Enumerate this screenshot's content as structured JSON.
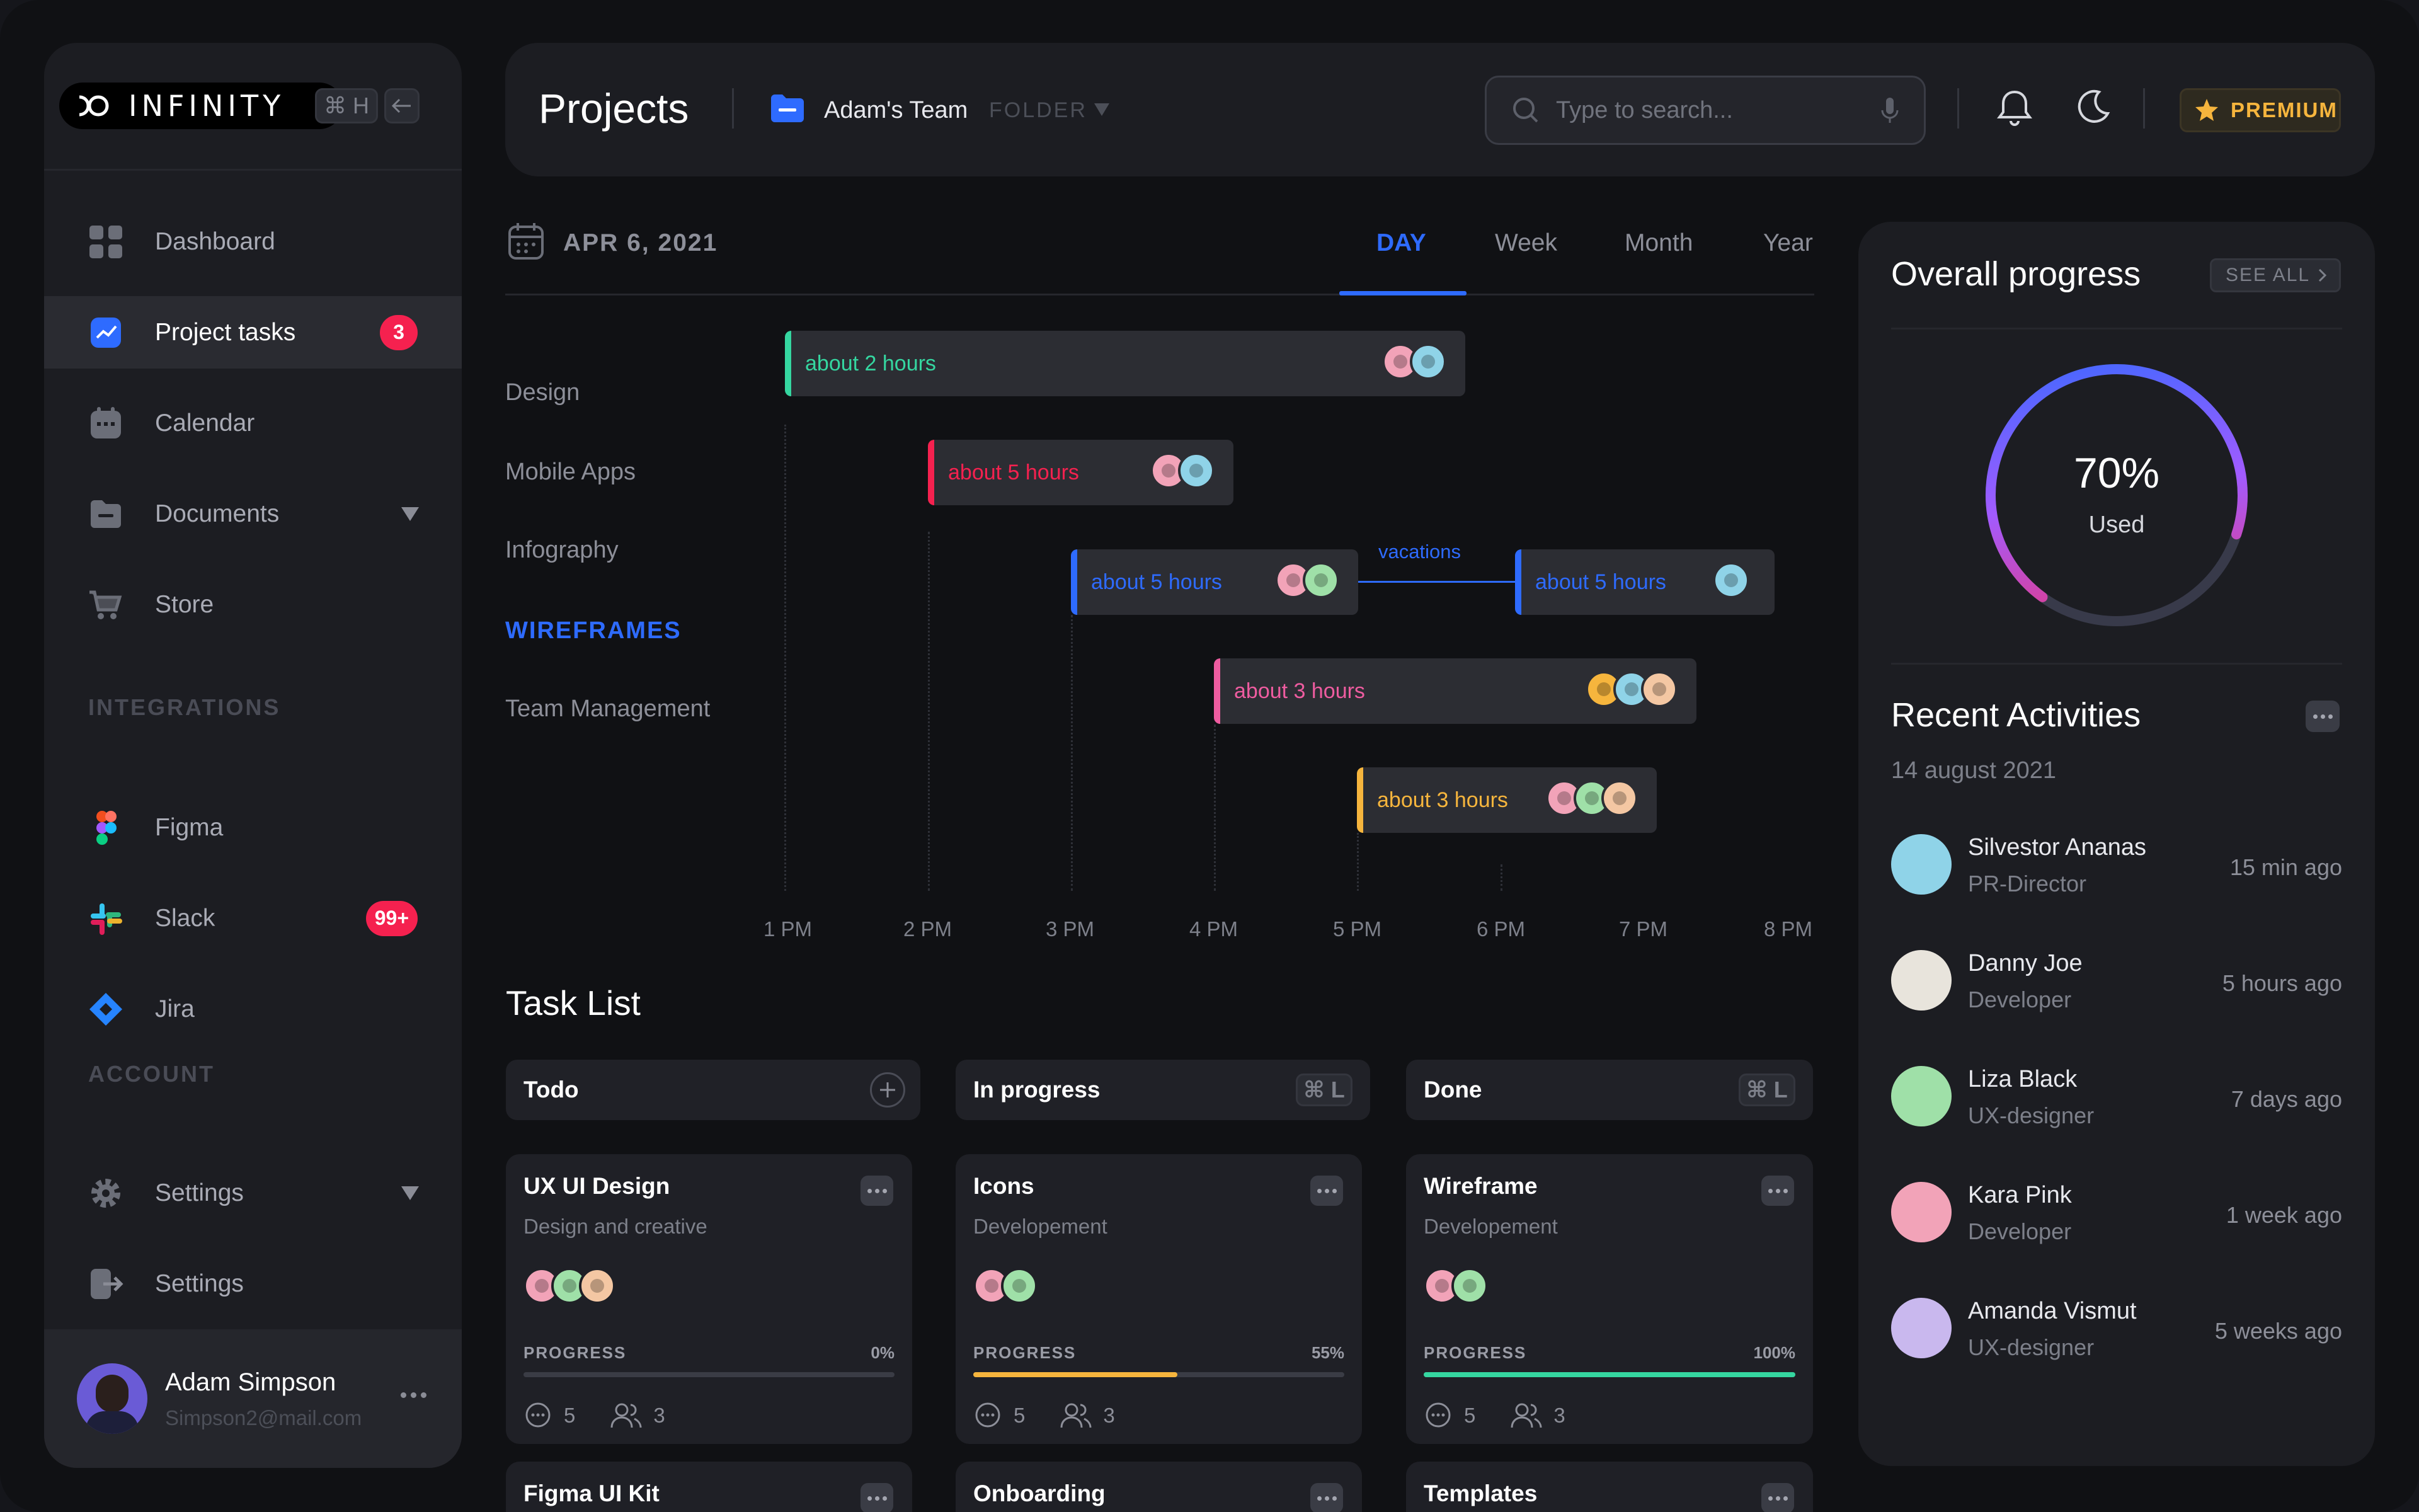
{
  "app": {
    "logo_text": "INFINITY",
    "shortcut_search": "⌘ H",
    "collapse_icon": "arrow-left-icon"
  },
  "sidebar": {
    "items": [
      {
        "label": "Dashboard",
        "icon": "grid-icon"
      },
      {
        "label": "Project tasks",
        "icon": "chart-icon",
        "badge": "3",
        "active": true
      },
      {
        "label": "Calendar",
        "icon": "calendar-icon"
      },
      {
        "label": "Documents",
        "icon": "folder-icon",
        "expandable": true
      },
      {
        "label": "Store",
        "icon": "cart-icon"
      }
    ],
    "integrations_label": "INTEGRATIONS",
    "integrations": [
      {
        "label": "Figma",
        "icon": "figma-icon"
      },
      {
        "label": "Slack",
        "icon": "slack-icon",
        "badge": "99+"
      },
      {
        "label": "Jira",
        "icon": "jira-icon"
      }
    ],
    "account_label": "ACCOUNT",
    "account": [
      {
        "label": "Settings",
        "icon": "gear-icon",
        "expandable": true
      },
      {
        "label": "Settings",
        "icon": "logout-icon"
      }
    ],
    "user": {
      "name": "Adam Simpson",
      "email": "Simpson2@mail.com"
    }
  },
  "header": {
    "title": "Projects",
    "team": "Adam's Team",
    "folder": "FOLDER",
    "search_placeholder": "Type to search...",
    "premium": "PREMIUM"
  },
  "timeline": {
    "date": "APR 6, 2021",
    "tabs": [
      "DAY",
      "Week",
      "Month",
      "Year"
    ],
    "active_tab": "DAY",
    "rows": [
      "Design",
      "Mobile Apps",
      "Infography",
      "WIREFRAMES",
      "Team Management"
    ],
    "highlight_row": "WIREFRAMES",
    "hours": [
      "1 PM",
      "2 PM",
      "3 PM",
      "4 PM",
      "5 PM",
      "6 PM",
      "7 PM",
      "8 PM"
    ],
    "bars": [
      {
        "label": "about 2 hours",
        "color": "#35d6a0",
        "start": "1 PM",
        "avatars": 2
      },
      {
        "label": "about 5 hours",
        "color": "#f5214f",
        "start": "2 PM",
        "avatars": 2
      },
      {
        "label": "about 5 hours",
        "color": "#2e6bff",
        "start": "3 PM",
        "avatars": 2
      },
      {
        "label": "about 5 hours",
        "color": "#2e6bff",
        "avatars": 1
      },
      {
        "label": "about 3 hours",
        "color": "#ee5ca0",
        "start": "4 PM",
        "avatars": 3
      },
      {
        "label": "about 3 hours",
        "color": "#f6b53d",
        "start": "5 PM",
        "avatars": 3
      }
    ],
    "gap_label": "vacations"
  },
  "tasklist": {
    "title": "Task List",
    "columns": [
      {
        "label": "Todo",
        "action": "plus-icon"
      },
      {
        "label": "In progress",
        "shortcut": "⌘ L"
      },
      {
        "label": "Done",
        "shortcut": "⌘ L"
      }
    ],
    "cards": [
      {
        "title": "UX UI Design",
        "subtitle": "Design and creative",
        "progress_label": "PROGRESS",
        "progress": "0%",
        "progress_value": 0,
        "color": "#f6b53d",
        "comments": "5",
        "members": "3"
      },
      {
        "title": "Icons",
        "subtitle": "Developement",
        "progress_label": "PROGRESS",
        "progress": "55%",
        "progress_value": 55,
        "color": "#f6b53d",
        "comments": "5",
        "members": "3"
      },
      {
        "title": "Wireframe",
        "subtitle": "Developement",
        "progress_label": "PROGRESS",
        "progress": "100%",
        "progress_value": 100,
        "color": "#35d6a0",
        "comments": "5",
        "members": "3"
      }
    ],
    "next_cards": [
      "Figma UI Kit",
      "Onboarding",
      "Templates"
    ]
  },
  "progress": {
    "title": "Overall progress",
    "see_all": "SEE ALL",
    "percent": "70%",
    "percent_value": 70,
    "caption": "Used"
  },
  "activities": {
    "title": "Recent Activities",
    "date": "14 august 2021",
    "items": [
      {
        "name": "Silvestor Ananas",
        "role": "PR-Director",
        "time": "15 min ago",
        "color": "#8fd3e8"
      },
      {
        "name": "Danny Joe",
        "role": "Developer",
        "time": "5 hours ago",
        "color": "#e8e4dc"
      },
      {
        "name": "Liza Black",
        "role": "UX-designer",
        "time": "7 days ago",
        "color": "#9fe0a8"
      },
      {
        "name": "Kara Pink",
        "role": "Developer",
        "time": "1 week ago",
        "color": "#f2a3b8"
      },
      {
        "name": "Amanda Vismut",
        "role": "UX-designer",
        "time": "5 weeks ago",
        "color": "#c9b8ee"
      }
    ]
  }
}
